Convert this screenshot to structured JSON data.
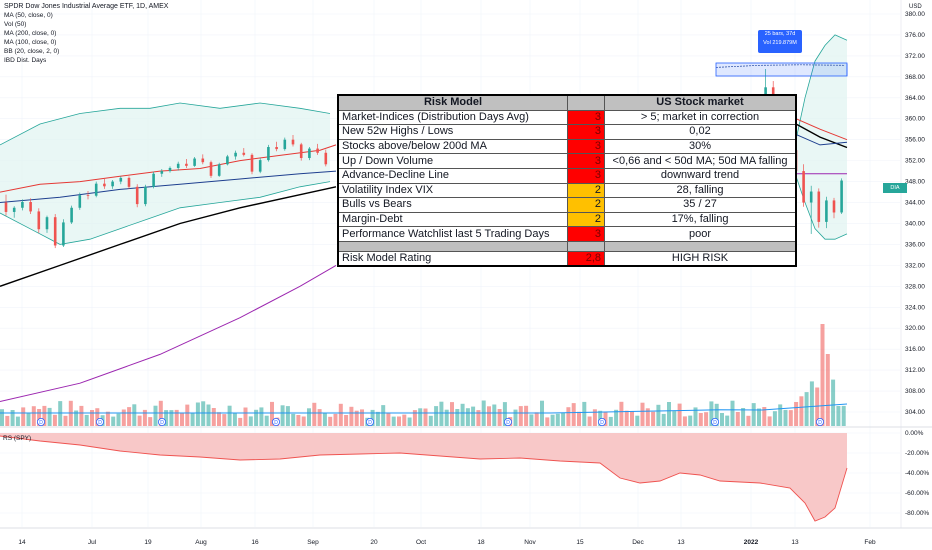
{
  "legend": {
    "title": "SPDR Dow Jones Industrial Average ETF, 1D, AMEX",
    "indicators": [
      "MA (50, close, 0)",
      "Vol (50)",
      "MA (200, close, 0)",
      "MA (100, close, 0)",
      "BB (20, close, 2, 0)",
      "IBD Dist. Days"
    ]
  },
  "currency": "USD",
  "tooltip": {
    "line1": "25 bars, 37d",
    "line2": "Vol 219.879M"
  },
  "last_price_tag": "DIA",
  "rs_label": "RS (SPY)",
  "colors": {
    "up": "#26a69a",
    "down": "#ef5350",
    "ma_red": "#e53935",
    "ma_blue": "#1e3f8f",
    "ma_black": "#000000",
    "ma_purple": "#9c27b0",
    "bb": "#26a69a",
    "bb_fill": "#e0f4f1",
    "rs_fill": "#f8c8c8",
    "rs_line": "#ef5350",
    "vol_ma": "#2196f3",
    "dist_day": "#2962ff",
    "score_red": "#ff0000",
    "score_orange": "#ffc000"
  },
  "risk_table": {
    "headers": [
      "Risk Model",
      "US Stock market"
    ],
    "rows": [
      {
        "label": "Market-Indices (Distribution Days Avg)",
        "score": "3",
        "level": "red",
        "value": "> 5; market in correction"
      },
      {
        "label": "New 52w Highs / Lows",
        "score": "3",
        "level": "red",
        "value": "0,02"
      },
      {
        "label": "Stocks above/below 200d MA",
        "score": "3",
        "level": "red",
        "value": "30%"
      },
      {
        "label": "Up / Down Volume",
        "score": "3",
        "level": "red",
        "value": "<0,66 and < 50d MA; 50d MA falling"
      },
      {
        "label": "Advance-Decline Line",
        "score": "3",
        "level": "red",
        "value": "downward trend"
      },
      {
        "label": "Volatility Index VIX",
        "score": "2",
        "level": "orange",
        "value": "28, falling"
      },
      {
        "label": "Bulls vs Bears",
        "score": "2",
        "level": "orange",
        "value": "35 / 27"
      },
      {
        "label": "Margin-Debt",
        "score": "2",
        "level": "orange",
        "value": "17%, falling"
      },
      {
        "label": "Performance Watchlist last 5 Trading Days",
        "score": "3",
        "level": "red",
        "value": "poor"
      }
    ],
    "rating_label": "Risk Model Rating",
    "rating_score": "2,8",
    "rating_value": "HIGH RISK"
  },
  "chart_data": {
    "type": "candlestick",
    "price_axis": {
      "ticks": [
        380,
        376,
        372,
        368,
        364,
        360,
        356,
        352,
        348,
        344,
        340,
        336,
        332,
        328,
        324,
        320,
        316,
        312,
        308,
        304
      ],
      "tick_labels": [
        "380.00",
        "376.00",
        "372.00",
        "368.00",
        "364.00",
        "360.00",
        "356.00",
        "352.00",
        "348.00",
        "344.00",
        "340.00",
        "336.00",
        "332.00",
        "328.00",
        "324.00",
        "320.00",
        "316.00",
        "312.00",
        "308.00",
        "304.00"
      ]
    },
    "rs_axis": {
      "ticks": [
        0,
        -20,
        -40,
        -60,
        -80
      ],
      "tick_labels": [
        "0.00%",
        "-20.00%",
        "-40.00%",
        "-60.00%",
        "-80.00%"
      ]
    },
    "time_axis": [
      "14",
      "Jul",
      "19",
      "Aug",
      "16",
      "Sep",
      "20",
      "Oct",
      "18",
      "Nov",
      "15",
      "Dec",
      "13",
      "2022",
      "13",
      "Feb"
    ],
    "visible_candles_left": [
      [
        344.0,
        345.5,
        341.5,
        342.2
      ],
      [
        342.2,
        343.3,
        341.1,
        343.0
      ],
      [
        343.0,
        344.6,
        342.5,
        344.1
      ],
      [
        344.1,
        344.8,
        341.8,
        342.3
      ],
      [
        342.3,
        342.9,
        338.2,
        338.9
      ],
      [
        338.9,
        341.5,
        338.2,
        341.2
      ],
      [
        341.2,
        341.8,
        335.3,
        335.8
      ],
      [
        335.8,
        340.8,
        335.5,
        340.2
      ],
      [
        340.2,
        343.4,
        339.9,
        343.0
      ],
      [
        343.0,
        345.9,
        342.6,
        345.4
      ],
      [
        345.4,
        346.2,
        344.6,
        345.3
      ],
      [
        345.3,
        348.0,
        345.0,
        347.6
      ],
      [
        347.6,
        348.5,
        346.6,
        347.1
      ],
      [
        347.1,
        348.3,
        346.6,
        348.0
      ],
      [
        348.0,
        349.0,
        347.5,
        348.7
      ],
      [
        348.7,
        349.0,
        346.6,
        347.0
      ],
      [
        347.0,
        347.5,
        343.1,
        343.7
      ],
      [
        343.7,
        347.4,
        343.3,
        347.0
      ],
      [
        347.0,
        349.9,
        346.7,
        349.5
      ],
      [
        349.5,
        350.4,
        348.9,
        350.0
      ],
      [
        350.0,
        350.9,
        349.7,
        350.6
      ],
      [
        350.6,
        351.8,
        350.1,
        351.4
      ],
      [
        351.4,
        352.3,
        350.6,
        351.0
      ],
      [
        351.0,
        352.7,
        350.8,
        352.4
      ],
      [
        352.4,
        353.2,
        351.3,
        351.7
      ],
      [
        351.7,
        352.0,
        348.7,
        349.1
      ],
      [
        349.1,
        351.6,
        348.9,
        351.3
      ],
      [
        351.3,
        353.1,
        351.1,
        352.8
      ],
      [
        352.8,
        353.9,
        352.2,
        353.5
      ],
      [
        353.5,
        354.4,
        352.8,
        353.1
      ],
      [
        353.1,
        353.4,
        349.4,
        349.9
      ],
      [
        349.9,
        352.5,
        349.6,
        352.1
      ],
      [
        352.1,
        355.0,
        351.8,
        354.6
      ],
      [
        354.6,
        355.6,
        353.8,
        354.2
      ],
      [
        354.2,
        356.4,
        353.9,
        356.0
      ],
      [
        356.0,
        356.9,
        354.7,
        355.1
      ],
      [
        355.1,
        355.4,
        352.0,
        352.5
      ],
      [
        352.5,
        354.6,
        352.1,
        354.3
      ],
      [
        354.3,
        355.2,
        353.1,
        353.5
      ],
      [
        353.5,
        354.1,
        350.9,
        351.3
      ]
    ],
    "visible_candles_right": [
      [
        362.0,
        364.5,
        360.5,
        363.8
      ],
      [
        363.8,
        369.5,
        363.1,
        366.0
      ],
      [
        366.0,
        367.2,
        361.7,
        362.4
      ],
      [
        362.4,
        363.0,
        357.2,
        357.9
      ],
      [
        357.9,
        358.6,
        353.1,
        354.0
      ],
      [
        354.0,
        354.8,
        349.4,
        350.0
      ],
      [
        350.0,
        351.3,
        343.2,
        344.0
      ],
      [
        344.0,
        347.2,
        338.0,
        346.1
      ],
      [
        346.1,
        346.7,
        339.2,
        340.3
      ],
      [
        340.3,
        345.1,
        339.1,
        344.4
      ],
      [
        344.4,
        344.9,
        341.0,
        342.1
      ],
      [
        342.1,
        348.6,
        341.8,
        348.2
      ]
    ],
    "volume_bars_count": 160,
    "distribution_day_markers": 10,
    "series": [
      {
        "name": "MA (50, close, 0)",
        "color": "#e53935"
      },
      {
        "name": "MA (100, close, 0)",
        "color": "#1e3f8f"
      },
      {
        "name": "MA (200, close, 0)",
        "color": "#000000"
      },
      {
        "name": "BB (20, close, 2, 0)",
        "color": "#26a69a"
      },
      {
        "name": "Vol (50)",
        "color": "#2196f3"
      },
      {
        "name": "RS (SPY)",
        "color": "#ef5350"
      }
    ],
    "measure_tooltip": [
      "25 bars, 37d",
      "Vol 219.879M"
    ],
    "last_price": 348.2
  }
}
